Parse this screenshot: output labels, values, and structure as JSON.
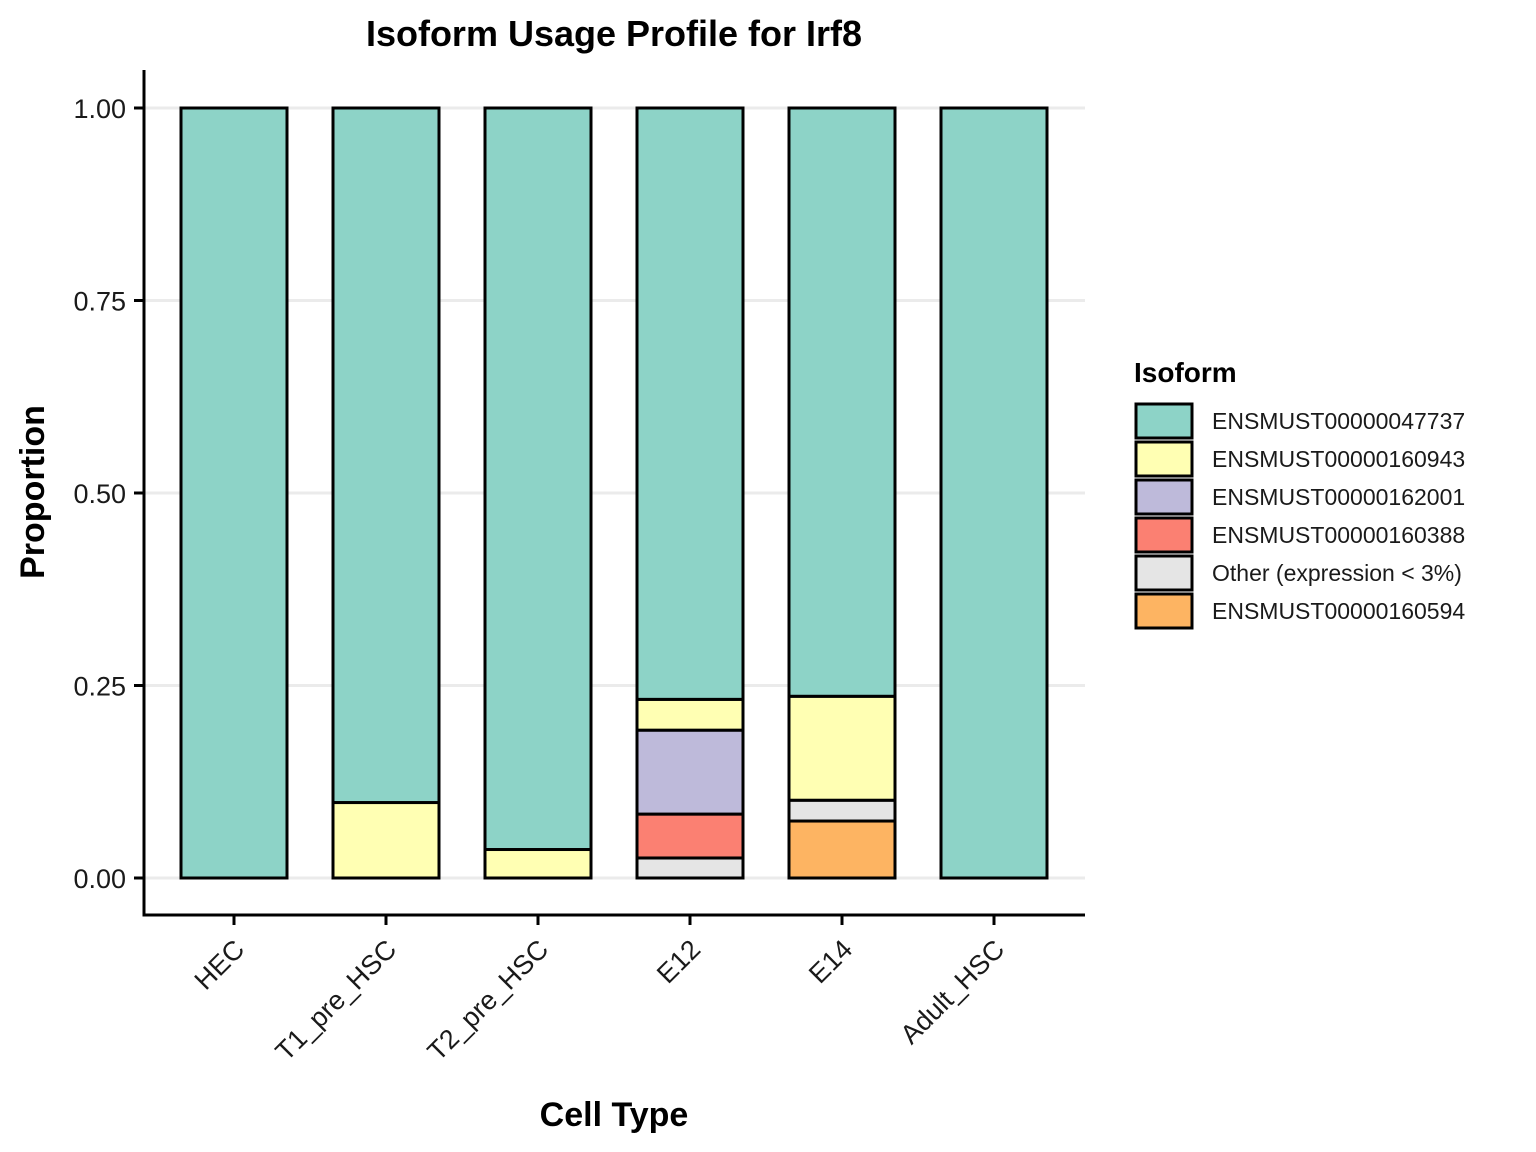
{
  "chart_data": {
    "type": "bar",
    "stacked": true,
    "title": "Isoform Usage Profile for Irf8",
    "xlabel": "Cell Type",
    "ylabel": "Proportion",
    "categories": [
      "HEC",
      "T1_pre_HSC",
      "T2_pre_HSC",
      "E12",
      "E14",
      "Adult_HSC"
    ],
    "ylim": [
      0,
      1
    ],
    "yticks": [
      "0.00",
      "0.25",
      "0.50",
      "0.75",
      "1.00"
    ],
    "ytick_values": [
      0,
      0.25,
      0.5,
      0.75,
      1.0
    ],
    "grid": "horizontal",
    "legend_title": "Isoform",
    "legend_position": "right",
    "series": [
      {
        "name": "ENSMUST00000047737",
        "color": "#8DD3C7",
        "values": [
          1.0,
          0.902,
          0.963,
          0.768,
          0.764,
          1.0
        ]
      },
      {
        "name": "ENSMUST00000160943",
        "color": "#FFFFB3",
        "values": [
          0.0,
          0.098,
          0.037,
          0.04,
          0.135,
          0.0
        ]
      },
      {
        "name": "ENSMUST00000162001",
        "color": "#BEBADA",
        "values": [
          0.0,
          0.0,
          0.0,
          0.109,
          0.0,
          0.0
        ]
      },
      {
        "name": "ENSMUST00000160388",
        "color": "#FB8072",
        "values": [
          0.0,
          0.0,
          0.0,
          0.057,
          0.0,
          0.0
        ]
      },
      {
        "name": "Other (expression < 3%)",
        "color": "#E5E5E5",
        "values": [
          0.0,
          0.0,
          0.0,
          0.026,
          0.027,
          0.0
        ]
      },
      {
        "name": "ENSMUST00000160594",
        "color": "#FDB462",
        "values": [
          0.0,
          0.0,
          0.0,
          0.0,
          0.074,
          0.0
        ]
      }
    ],
    "stack_order_bottom_to_top": [
      "ENSMUST00000160594",
      "Other (expression < 3%)",
      "ENSMUST00000160388",
      "ENSMUST00000162001",
      "ENSMUST00000160943",
      "ENSMUST00000047737"
    ]
  }
}
